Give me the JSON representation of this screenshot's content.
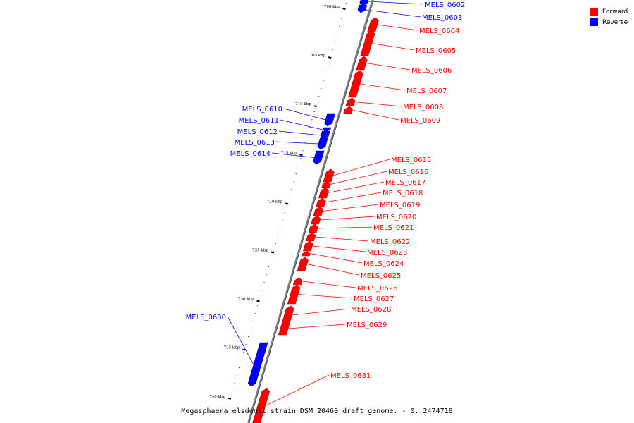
{
  "caption": "Megasphaera elsdenii strain DSM 20460 draft genome. - 0..2474718",
  "legend": [
    {
      "label": "Forward",
      "color": "#ff0000"
    },
    {
      "label": "Reverse",
      "color": "#0000ff"
    }
  ],
  "colors": {
    "forward": "#ff0000",
    "reverse": "#0000ff",
    "backbone": "#808080"
  },
  "scale_ticks": [
    "700 kbp",
    "705 kbp",
    "710 kbp",
    "715 kbp",
    "720 kbp",
    "725 kbp",
    "730 kbp",
    "735 kbp",
    "740 kbp"
  ],
  "genes": [
    {
      "label": "MELS_0602",
      "strand": "reverse"
    },
    {
      "label": "MELS_0603",
      "strand": "reverse"
    },
    {
      "label": "MELS_0604",
      "strand": "forward"
    },
    {
      "label": "MELS_0605",
      "strand": "forward"
    },
    {
      "label": "MELS_0606",
      "strand": "forward"
    },
    {
      "label": "MELS_0607",
      "strand": "forward"
    },
    {
      "label": "MELS_0608",
      "strand": "forward"
    },
    {
      "label": "MELS_0609",
      "strand": "forward"
    },
    {
      "label": "MELS_0610",
      "strand": "reverse"
    },
    {
      "label": "MELS_0611",
      "strand": "reverse"
    },
    {
      "label": "MELS_0612",
      "strand": "reverse"
    },
    {
      "label": "MELS_0613",
      "strand": "reverse"
    },
    {
      "label": "MELS_0614",
      "strand": "reverse"
    },
    {
      "label": "MELS_0615",
      "strand": "forward"
    },
    {
      "label": "MELS_0616",
      "strand": "forward"
    },
    {
      "label": "MELS_0617",
      "strand": "forward"
    },
    {
      "label": "MELS_0618",
      "strand": "forward"
    },
    {
      "label": "MELS_0619",
      "strand": "forward"
    },
    {
      "label": "MELS_0620",
      "strand": "forward"
    },
    {
      "label": "MELS_0621",
      "strand": "forward"
    },
    {
      "label": "MELS_0622",
      "strand": "forward"
    },
    {
      "label": "MELS_0623",
      "strand": "forward"
    },
    {
      "label": "MELS_0624",
      "strand": "forward"
    },
    {
      "label": "MELS_0625",
      "strand": "forward"
    },
    {
      "label": "MELS_0626",
      "strand": "forward"
    },
    {
      "label": "MELS_0627",
      "strand": "forward"
    },
    {
      "label": "MELS_0628",
      "strand": "forward"
    },
    {
      "label": "MELS_0629",
      "strand": "forward"
    },
    {
      "label": "MELS_0630",
      "strand": "reverse"
    },
    {
      "label": "MELS_0631",
      "strand": "forward"
    }
  ]
}
